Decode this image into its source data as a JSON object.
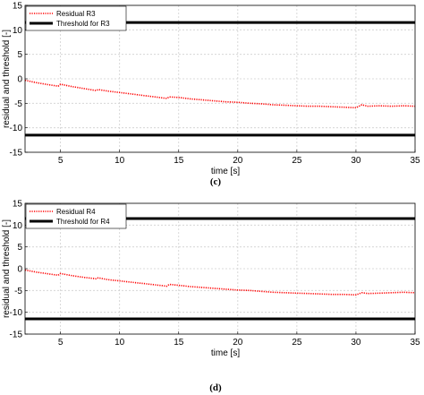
{
  "chart_data": [
    {
      "type": "line",
      "panel_label": "(c)",
      "xlabel": "time [s]",
      "ylabel": "residual and threshold [-]",
      "xlim": [
        2,
        35
      ],
      "ylim": [
        -15,
        15
      ],
      "xticks": [
        5,
        10,
        15,
        20,
        25,
        30,
        35
      ],
      "yticks": [
        15,
        10,
        5,
        0,
        -5,
        -10,
        -15
      ],
      "grid": true,
      "legend_position": "top-left",
      "series": [
        {
          "name": "Residual R3",
          "style": "dotted",
          "color": "#ff0000",
          "x": [
            2,
            3,
            4,
            4.8,
            5,
            6,
            7,
            8,
            8.2,
            9,
            10,
            11,
            12,
            13,
            14,
            14.2,
            15,
            16,
            17,
            18,
            19,
            20,
            21,
            22,
            23,
            24,
            25,
            26,
            27,
            28,
            29,
            30,
            30.5,
            31,
            32,
            33,
            34,
            35
          ],
          "y": [
            -0.3,
            -0.8,
            -1.2,
            -1.5,
            -1.1,
            -1.6,
            -2.0,
            -2.4,
            -2.2,
            -2.5,
            -2.8,
            -3.1,
            -3.4,
            -3.7,
            -4.0,
            -3.7,
            -3.8,
            -4.1,
            -4.3,
            -4.5,
            -4.7,
            -4.8,
            -5.0,
            -5.1,
            -5.3,
            -5.4,
            -5.5,
            -5.6,
            -5.6,
            -5.7,
            -5.8,
            -5.9,
            -5.3,
            -5.6,
            -5.5,
            -5.6,
            -5.5,
            -5.6
          ]
        },
        {
          "name": "Threshold for R3",
          "style": "solid",
          "color": "#000000",
          "x": [
            2,
            35
          ],
          "y": [
            11.5,
            11.5
          ]
        },
        {
          "name": "",
          "style": "solid",
          "color": "#000000",
          "x": [
            2,
            35
          ],
          "y": [
            -11.5,
            -11.5
          ]
        }
      ]
    },
    {
      "type": "line",
      "panel_label": "(d)",
      "xlabel": "time [s]",
      "ylabel": "residual and threshold [-]",
      "xlim": [
        2,
        35
      ],
      "ylim": [
        -15,
        15
      ],
      "xticks": [
        5,
        10,
        15,
        20,
        25,
        30,
        35
      ],
      "yticks": [
        15,
        10,
        5,
        0,
        -5,
        -10,
        -15
      ],
      "grid": true,
      "legend_position": "top-left",
      "series": [
        {
          "name": "Residual R4",
          "style": "dotted",
          "color": "#ff0000",
          "x": [
            2,
            3,
            4,
            4.8,
            5,
            6,
            7,
            8,
            8.2,
            9,
            10,
            11,
            12,
            13,
            14,
            14.2,
            15,
            16,
            17,
            18,
            19,
            20,
            21,
            22,
            23,
            24,
            25,
            26,
            27,
            28,
            29,
            30,
            30.5,
            31,
            32,
            33,
            34,
            35
          ],
          "y": [
            -0.3,
            -0.8,
            -1.2,
            -1.5,
            -1.1,
            -1.6,
            -2.0,
            -2.3,
            -2.1,
            -2.5,
            -2.8,
            -3.1,
            -3.4,
            -3.7,
            -4.0,
            -3.6,
            -3.8,
            -4.1,
            -4.3,
            -4.5,
            -4.7,
            -4.9,
            -5.0,
            -5.2,
            -5.4,
            -5.5,
            -5.6,
            -5.7,
            -5.8,
            -5.9,
            -5.9,
            -6.0,
            -5.5,
            -5.7,
            -5.6,
            -5.5,
            -5.4,
            -5.5
          ]
        },
        {
          "name": "Threshold for R4",
          "style": "solid",
          "color": "#000000",
          "x": [
            2,
            35
          ],
          "y": [
            11.5,
            11.5
          ]
        },
        {
          "name": "",
          "style": "solid",
          "color": "#000000",
          "x": [
            2,
            35
          ],
          "y": [
            -11.5,
            -11.5
          ]
        }
      ]
    }
  ]
}
